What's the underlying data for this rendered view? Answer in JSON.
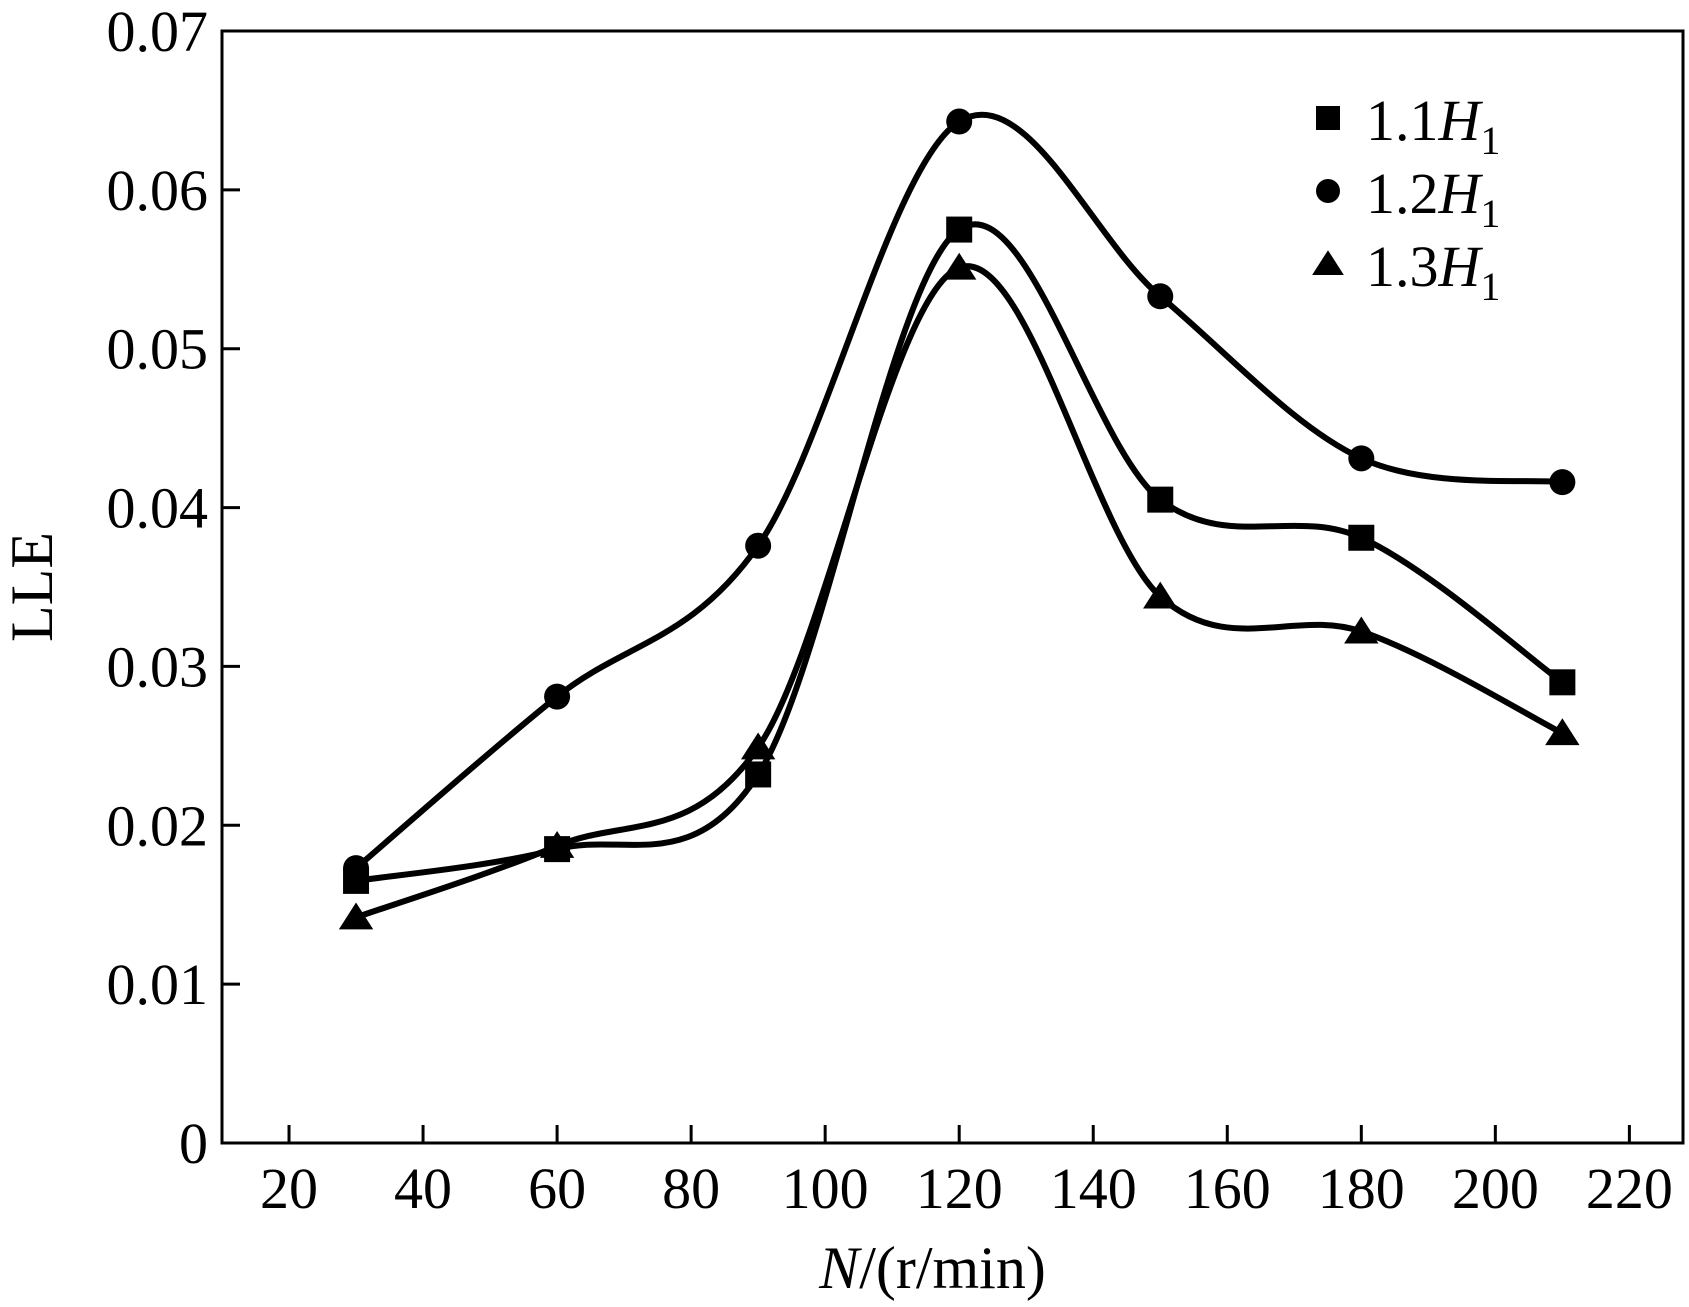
{
  "chart_data": {
    "type": "line",
    "title": "",
    "xlabel_italic": "N",
    "xlabel_rest": "/(r/min)",
    "ylabel": "LLE",
    "xlim": [
      10,
      228
    ],
    "ylim": [
      0,
      0.07
    ],
    "xticks": [
      20,
      40,
      60,
      80,
      100,
      120,
      140,
      160,
      180,
      200,
      220
    ],
    "yticks": [
      0,
      0.01,
      0.02,
      0.03,
      0.04,
      0.05,
      0.06,
      0.07
    ],
    "ytick_labels": [
      "0",
      "0.01",
      "0.02",
      "0.03",
      "0.04",
      "0.05",
      "0.06",
      "0.07"
    ],
    "xtick_labels": [
      "20",
      "40",
      "60",
      "80",
      "100",
      "120",
      "140",
      "160",
      "180",
      "200",
      "220"
    ],
    "grid": false,
    "legend_position": "top-right",
    "x": [
      30,
      60,
      90,
      120,
      150,
      180,
      210
    ],
    "series": [
      {
        "name_prefix": "1.1",
        "name_italic": "H",
        "name_sub": "1",
        "marker": "square",
        "values": [
          0.0165,
          0.0185,
          0.0232,
          0.0575,
          0.0405,
          0.0381,
          0.029
        ]
      },
      {
        "name_prefix": "1.2",
        "name_italic": "H",
        "name_sub": "1",
        "marker": "circle",
        "values": [
          0.0173,
          0.0281,
          0.0376,
          0.0643,
          0.0533,
          0.0431,
          0.0416
        ]
      },
      {
        "name_prefix": "1.3",
        "name_italic": "H",
        "name_sub": "1",
        "marker": "triangle",
        "values": [
          0.0142,
          0.0187,
          0.0249,
          0.0551,
          0.0344,
          0.0322,
          0.0258
        ]
      }
    ]
  }
}
